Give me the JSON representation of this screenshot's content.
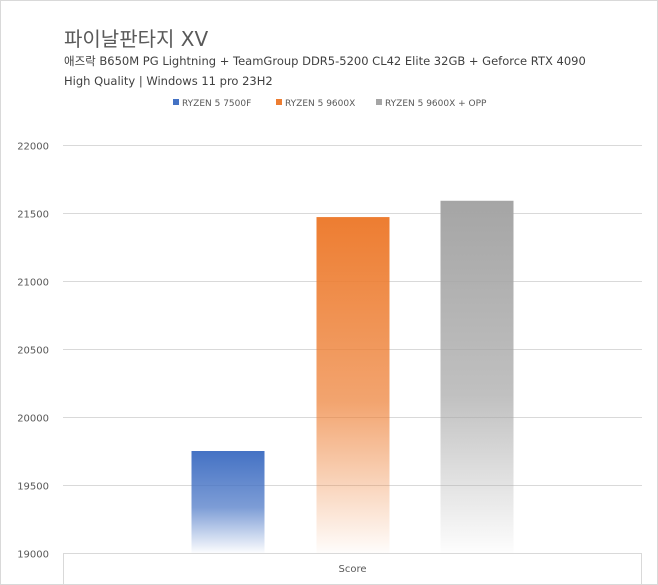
{
  "chart_data": {
    "type": "bar",
    "title": "파이날판타지 XV",
    "subtitle_lines": [
      "애즈락 B650M PG Lightning + TeamGroup DDR5-5200 CL42 Elite 32GB + Geforce RTX 4090",
      "High Quality | Windows 11 pro 23H2"
    ],
    "categories": [
      "Score"
    ],
    "series": [
      {
        "name": "RYZEN 5 7500F",
        "values": [
          19750
        ],
        "color": "#4472c4"
      },
      {
        "name": "RYZEN 5 9600X",
        "values": [
          21470
        ],
        "color": "#ed7d31"
      },
      {
        "name": "RYZEN 5 9600X + OPP",
        "values": [
          21590
        ],
        "color": "#a5a5a5"
      }
    ],
    "ylim": [
      19000,
      22000
    ],
    "yticks": [
      19000,
      19500,
      20000,
      20500,
      21000,
      21500,
      22000
    ],
    "ytick_labels": [
      "19000",
      "19500",
      "20000",
      "20500",
      "21000",
      "21500",
      "22000"
    ],
    "grid": true,
    "legend_position": "top",
    "xlabel": "",
    "ylabel": ""
  }
}
